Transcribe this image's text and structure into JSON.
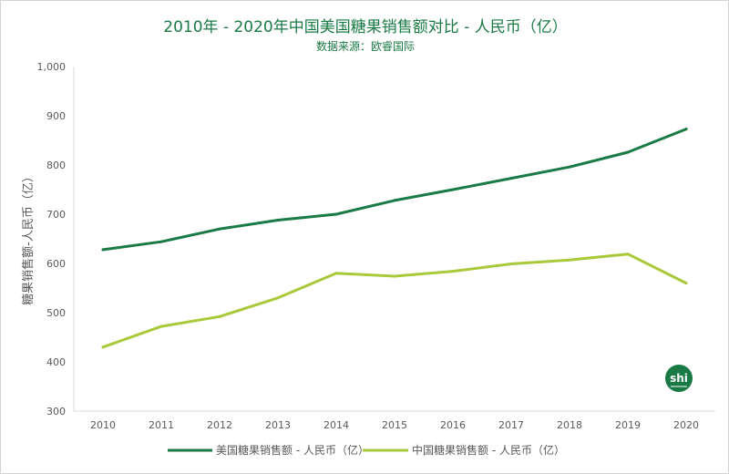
{
  "chart_data": {
    "type": "line",
    "title": "2010年 - 2020年中国美国糖果销售额对比 - 人民币（亿）",
    "subtitle": "数据来源：欧睿国际",
    "xlabel": "",
    "ylabel": "糖果销售额-人民币（亿）",
    "ylim": [
      300,
      1000
    ],
    "yticks": [
      300,
      400,
      500,
      600,
      700,
      800,
      900,
      1000
    ],
    "ytick_labels": [
      "300",
      "400",
      "500",
      "600",
      "700",
      "800",
      "900",
      "1,000"
    ],
    "categories": [
      "2010",
      "2011",
      "2012",
      "2013",
      "2014",
      "2015",
      "2016",
      "2017",
      "2018",
      "2019",
      "2020"
    ],
    "series": [
      {
        "name": "美国糖果销售额 - 人民币（亿）",
        "color": "#1a7a45",
        "values": [
          628,
          644,
          670,
          688,
          700,
          728,
          750,
          773,
          796,
          826,
          873
        ]
      },
      {
        "name": "中国糖果销售额 - 人民币（亿）",
        "color": "#a9c93a",
        "values": [
          430,
          472,
          492,
          530,
          580,
          574,
          584,
          599,
          607,
          619,
          560
        ]
      }
    ],
    "grid": false,
    "legend": "bottom-center",
    "logo_text": "shi"
  }
}
